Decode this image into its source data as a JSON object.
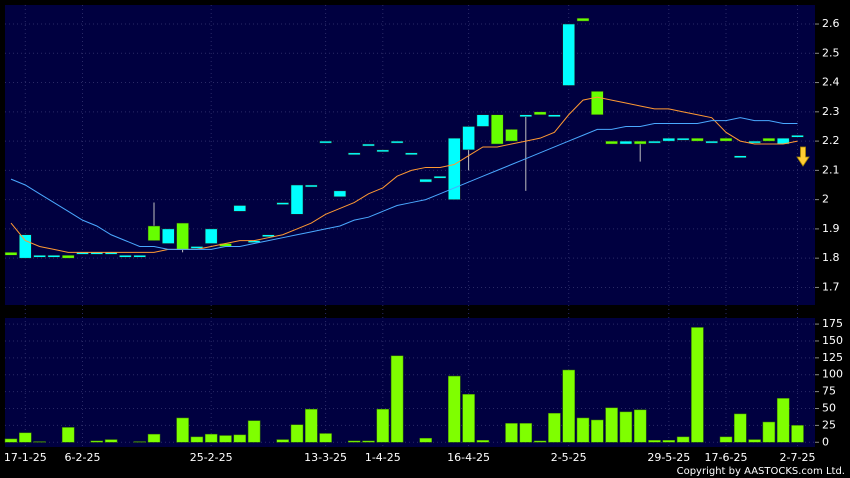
{
  "chart_data": [
    {
      "type": "candlestick",
      "categories": [
        null,
        "17-1-25",
        null,
        null,
        null,
        "6-2-25",
        null,
        null,
        null,
        null,
        null,
        null,
        null,
        null,
        "25-2-25",
        null,
        null,
        null,
        null,
        null,
        null,
        null,
        "13-3-25",
        null,
        null,
        null,
        "1-4-25",
        null,
        null,
        null,
        null,
        null,
        "16-4-25",
        null,
        null,
        null,
        null,
        null,
        null,
        "2-5-25",
        null,
        null,
        null,
        null,
        null,
        null,
        "29-5-25",
        null,
        null,
        null,
        "17-6-25",
        null,
        null,
        null,
        null,
        "2-7-25"
      ],
      "open": [
        1.82,
        1.8,
        1.81,
        1.81,
        1.81,
        1.82,
        1.82,
        1.82,
        1.81,
        1.81,
        1.91,
        1.85,
        1.92,
        1.84,
        1.85,
        1.85,
        1.96,
        1.86,
        1.88,
        1.99,
        1.95,
        2.05,
        2.2,
        2.01,
        2.16,
        2.19,
        2.17,
        2.2,
        2.16,
        2.06,
        2.08,
        2.0,
        2.17,
        2.25,
        2.29,
        2.24,
        2.29,
        2.3,
        2.29,
        2.39,
        2.62,
        2.37,
        2.2,
        2.19,
        2.2,
        2.2,
        2.2,
        2.21,
        2.21,
        2.2,
        2.21,
        2.15,
        2.2,
        2.21,
        2.19,
        2.22
      ],
      "high": [
        1.82,
        1.88,
        1.81,
        1.81,
        1.81,
        1.82,
        1.82,
        1.82,
        1.81,
        1.81,
        1.99,
        1.9,
        1.92,
        1.84,
        1.9,
        1.85,
        1.98,
        1.86,
        1.88,
        1.99,
        2.05,
        2.05,
        2.2,
        2.03,
        2.16,
        2.19,
        2.17,
        2.2,
        2.16,
        2.07,
        2.08,
        2.21,
        2.25,
        2.29,
        2.29,
        2.24,
        2.29,
        2.3,
        2.29,
        2.6,
        2.62,
        2.37,
        2.2,
        2.2,
        2.2,
        2.2,
        2.21,
        2.21,
        2.21,
        2.2,
        2.21,
        2.15,
        2.2,
        2.21,
        2.21,
        2.22
      ],
      "low": [
        1.81,
        1.8,
        1.81,
        1.81,
        1.8,
        1.82,
        1.82,
        1.82,
        1.81,
        1.81,
        1.86,
        1.85,
        1.82,
        1.84,
        1.85,
        1.84,
        1.96,
        1.86,
        1.88,
        1.99,
        1.95,
        2.05,
        2.2,
        2.01,
        2.16,
        2.19,
        2.17,
        2.2,
        2.16,
        2.06,
        2.08,
        2.0,
        2.1,
        2.25,
        2.19,
        2.2,
        2.03,
        2.29,
        2.29,
        2.39,
        2.61,
        2.29,
        2.19,
        2.19,
        2.13,
        2.2,
        2.2,
        2.21,
        2.2,
        2.2,
        2.2,
        2.15,
        2.2,
        2.2,
        2.19,
        2.22
      ],
      "close": [
        1.81,
        1.88,
        1.81,
        1.81,
        1.8,
        1.82,
        1.82,
        1.82,
        1.81,
        1.81,
        1.86,
        1.9,
        1.83,
        1.84,
        1.9,
        1.84,
        1.98,
        1.86,
        1.88,
        1.99,
        2.05,
        2.05,
        2.2,
        2.03,
        2.16,
        2.19,
        2.17,
        2.2,
        2.16,
        2.07,
        2.08,
        2.21,
        2.25,
        2.29,
        2.19,
        2.2,
        2.29,
        2.29,
        2.29,
        2.6,
        2.61,
        2.29,
        2.19,
        2.2,
        2.19,
        2.2,
        2.21,
        2.21,
        2.2,
        2.2,
        2.2,
        2.15,
        2.2,
        2.2,
        2.21,
        2.22
      ],
      "up_color": "#00ffff",
      "down_color": "#66ff00",
      "lines": [
        {
          "color": "#ff9933",
          "values": [
            1.92,
            1.86,
            1.84,
            1.83,
            1.82,
            1.82,
            1.82,
            1.82,
            1.82,
            1.82,
            1.82,
            1.83,
            1.83,
            1.83,
            1.84,
            1.85,
            1.86,
            1.86,
            1.87,
            1.88,
            1.9,
            1.92,
            1.95,
            1.97,
            1.99,
            2.02,
            2.04,
            2.08,
            2.1,
            2.11,
            2.11,
            2.12,
            2.15,
            2.18,
            2.18,
            2.19,
            2.2,
            2.21,
            2.23,
            2.29,
            2.34,
            2.35,
            2.34,
            2.33,
            2.32,
            2.31,
            2.31,
            2.3,
            2.29,
            2.28,
            2.23,
            2.2,
            2.19,
            2.19,
            2.19,
            2.2
          ]
        },
        {
          "color": "#4aa8ff",
          "values": [
            2.07,
            2.05,
            2.02,
            1.99,
            1.96,
            1.93,
            1.91,
            1.88,
            1.86,
            1.84,
            1.84,
            1.83,
            1.83,
            1.83,
            1.83,
            1.84,
            1.84,
            1.85,
            1.86,
            1.87,
            1.88,
            1.89,
            1.9,
            1.91,
            1.93,
            1.94,
            1.96,
            1.98,
            1.99,
            2.0,
            2.02,
            2.04,
            2.06,
            2.08,
            2.1,
            2.12,
            2.14,
            2.16,
            2.18,
            2.2,
            2.22,
            2.24,
            2.24,
            2.25,
            2.25,
            2.26,
            2.26,
            2.26,
            2.26,
            2.27,
            2.27,
            2.28,
            2.27,
            2.27,
            2.26,
            2.26
          ]
        }
      ],
      "ylim": [
        1.64,
        2.665
      ],
      "yticks": [
        1.7,
        1.8,
        1.9,
        2,
        2.1,
        2.2,
        2.3,
        2.4,
        2.5,
        2.6
      ],
      "grid": true
    },
    {
      "type": "bar",
      "values": [
        5,
        14,
        1,
        0,
        22,
        0,
        2,
        4,
        0,
        1,
        12,
        0,
        36,
        8,
        12,
        10,
        11,
        32,
        0,
        4,
        26,
        49,
        13,
        0,
        2,
        2,
        49,
        128,
        0,
        6,
        0,
        98,
        71,
        3,
        0,
        28,
        28,
        2,
        43,
        107,
        36,
        33,
        51,
        45,
        48,
        3,
        3,
        8,
        170,
        0,
        8,
        42,
        4,
        30,
        65,
        25
      ],
      "color": "#7fff00",
      "ylim": [
        -7,
        184
      ],
      "yticks": [
        0,
        25,
        50,
        75,
        100,
        125,
        150,
        175
      ],
      "grid": true
    }
  ],
  "footer": "Copyright by AASTOCKS.com Ltd."
}
